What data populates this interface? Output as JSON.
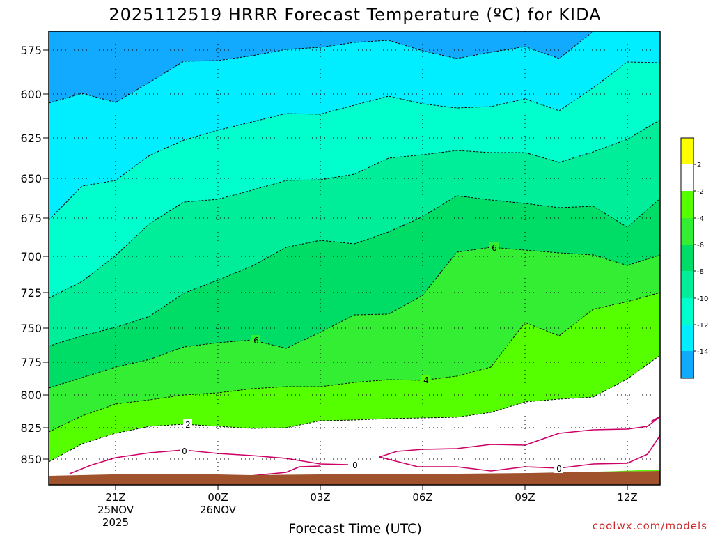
{
  "chart_data": {
    "type": "contour",
    "title": "2025112519 HRRR Forecast Temperature (ºC) for KIDA",
    "xlabel": "Forecast Time (UTC)",
    "ylabel": "",
    "credit": "coolwx.com/models",
    "y_axis": {
      "ticks": [
        "575",
        "600",
        "625",
        "650",
        "675",
        "700",
        "725",
        "750",
        "775",
        "800",
        "825",
        "850"
      ],
      "ylim": [
        556,
        866
      ],
      "inverted": true
    },
    "x_axis": {
      "ticks": [
        {
          "lines": [
            "21Z",
            "25NOV",
            "2025"
          ]
        },
        {
          "lines": [
            "00Z",
            "26NOV"
          ]
        },
        {
          "lines": [
            "03Z"
          ]
        },
        {
          "lines": [
            "06Z"
          ]
        },
        {
          "lines": [
            "09Z"
          ]
        },
        {
          "lines": [
            "12Z"
          ]
        }
      ]
    },
    "colorbar": {
      "labels": [
        "2",
        "-2",
        "-4",
        "-6",
        "-8",
        "-10",
        "-12",
        "-14"
      ],
      "bins": [
        {
          "range": ">2",
          "color": "#ffff00"
        },
        {
          "range": "-2..2",
          "color": "#ffffff"
        },
        {
          "range": "-4..-2",
          "color": "#55ff00"
        },
        {
          "range": "-6..-4",
          "color": "#33ee33"
        },
        {
          "range": "-8..-6",
          "color": "#00dd66"
        },
        {
          "range": "-10..-8",
          "color": "#00ee99"
        },
        {
          "range": "-12..-10",
          "color": "#00ffcc"
        },
        {
          "range": "-14..-12",
          "color": "#00eeff"
        },
        {
          "range": "<-14",
          "color": "#11aaff"
        }
      ]
    },
    "contour_labels": [
      {
        "text": "6"
      },
      {
        "text": "6"
      },
      {
        "text": "4"
      },
      {
        "text": "2"
      },
      {
        "text": "0"
      },
      {
        "text": "0"
      },
      {
        "text": "0"
      }
    ],
    "grid": true,
    "colors": {
      "ground": "#a0522d",
      "freezing_line": "#cc0066"
    }
  }
}
